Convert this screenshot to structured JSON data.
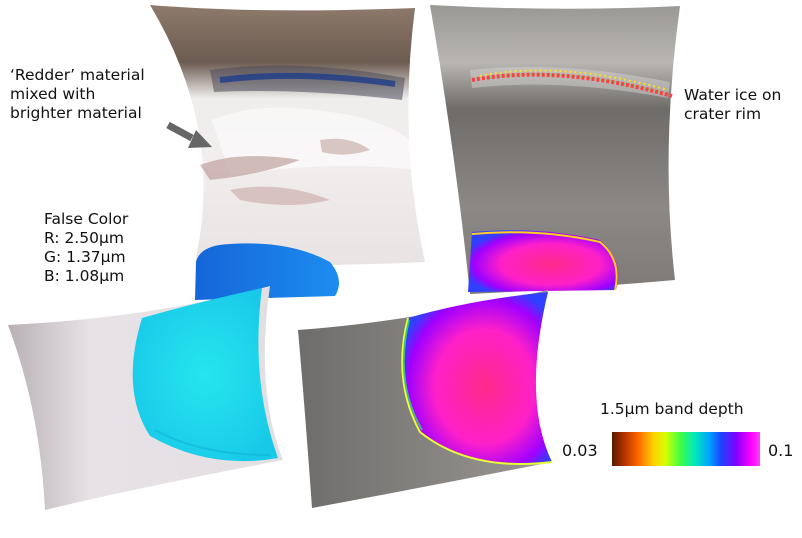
{
  "annotations": {
    "redder_lines": [
      "‘Redder’ material",
      "mixed with",
      "brighter material"
    ],
    "water_ice_lines": [
      "Water ice on",
      "crater rim"
    ],
    "false_color_lines": [
      "False Color",
      "R: 2.50μm",
      "G: 1.37μm",
      "B: 1.08μm"
    ]
  },
  "colorbar": {
    "title": "1.5μm band depth",
    "min_label": "0.03",
    "max_label": "0.1",
    "min": 0.03,
    "max": 0.1
  },
  "colors": {
    "ice_cyan": "#1ee8f0",
    "ice_blue": "#1a78e8",
    "ice_pink": "#ff2aa8",
    "terrain_gray": "#8a8784",
    "terrain_light": "#e6e0e0",
    "arrow": "#666666"
  }
}
